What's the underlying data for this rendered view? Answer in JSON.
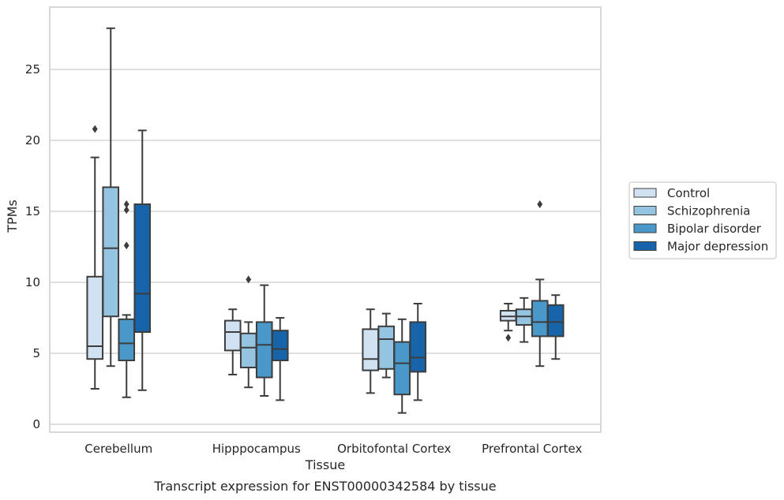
{
  "chart_data": {
    "type": "boxplot",
    "caption": "Transcript expression for ENST00000342584 by tissue",
    "xlabel": "Tissue",
    "ylabel": "TPMs",
    "ylim": [
      -0.5,
      29
    ],
    "yticks": [
      0,
      5,
      10,
      15,
      20,
      25
    ],
    "grid": "horizontal",
    "legend_position": "right",
    "categories": [
      "Cerebellum",
      "Hipppocampus",
      "Orbitofontal Cortex",
      "Prefrontal Cortex"
    ],
    "series": [
      {
        "name": "Control",
        "color": "#d0e1f2",
        "boxes": [
          {
            "whislo": 2.5,
            "q1": 4.6,
            "med": 5.5,
            "q3": 10.4,
            "whishi": 18.8,
            "fliers": [
              20.8
            ]
          },
          {
            "whislo": 3.5,
            "q1": 5.2,
            "med": 6.5,
            "q3": 7.3,
            "whishi": 8.1,
            "fliers": []
          },
          {
            "whislo": 2.2,
            "q1": 3.8,
            "med": 4.6,
            "q3": 6.7,
            "whishi": 8.1,
            "fliers": []
          },
          {
            "whislo": 6.6,
            "q1": 7.3,
            "med": 7.6,
            "q3": 8.0,
            "whishi": 8.5,
            "fliers": [
              6.1
            ]
          }
        ]
      },
      {
        "name": "Schizophrenia",
        "color": "#94c4df",
        "boxes": [
          {
            "whislo": 4.1,
            "q1": 7.6,
            "med": 12.4,
            "q3": 16.7,
            "whishi": 27.9,
            "fliers": []
          },
          {
            "whislo": 2.6,
            "q1": 4.0,
            "med": 5.4,
            "q3": 6.4,
            "whishi": 7.2,
            "fliers": [
              10.2
            ]
          },
          {
            "whislo": 3.3,
            "q1": 3.9,
            "med": 6.0,
            "q3": 6.9,
            "whishi": 7.8,
            "fliers": []
          },
          {
            "whislo": 5.8,
            "q1": 7.0,
            "med": 7.6,
            "q3": 8.1,
            "whishi": 8.9,
            "fliers": []
          }
        ]
      },
      {
        "name": "Bipolar disorder",
        "color": "#4a98c9",
        "boxes": [
          {
            "whislo": 1.9,
            "q1": 4.5,
            "med": 5.7,
            "q3": 7.4,
            "whishi": 7.7,
            "fliers": [
              15.5,
              15.1,
              12.6
            ]
          },
          {
            "whislo": 2.0,
            "q1": 3.3,
            "med": 5.6,
            "q3": 7.2,
            "whishi": 9.8,
            "fliers": []
          },
          {
            "whislo": 0.8,
            "q1": 2.1,
            "med": 4.3,
            "q3": 5.8,
            "whishi": 7.4,
            "fliers": []
          },
          {
            "whislo": 4.1,
            "q1": 6.2,
            "med": 7.2,
            "q3": 8.7,
            "whishi": 10.2,
            "fliers": [
              15.5
            ]
          }
        ]
      },
      {
        "name": "Major depression",
        "color": "#1764ab",
        "boxes": [
          {
            "whislo": 2.4,
            "q1": 6.5,
            "med": 9.2,
            "q3": 15.5,
            "whishi": 20.7,
            "fliers": []
          },
          {
            "whislo": 1.7,
            "q1": 4.5,
            "med": 5.3,
            "q3": 6.6,
            "whishi": 7.5,
            "fliers": []
          },
          {
            "whislo": 1.7,
            "q1": 3.7,
            "med": 4.7,
            "q3": 7.2,
            "whishi": 8.5,
            "fliers": []
          },
          {
            "whislo": 4.6,
            "q1": 6.2,
            "med": 7.2,
            "q3": 8.4,
            "whishi": 9.1,
            "fliers": []
          }
        ]
      }
    ]
  }
}
